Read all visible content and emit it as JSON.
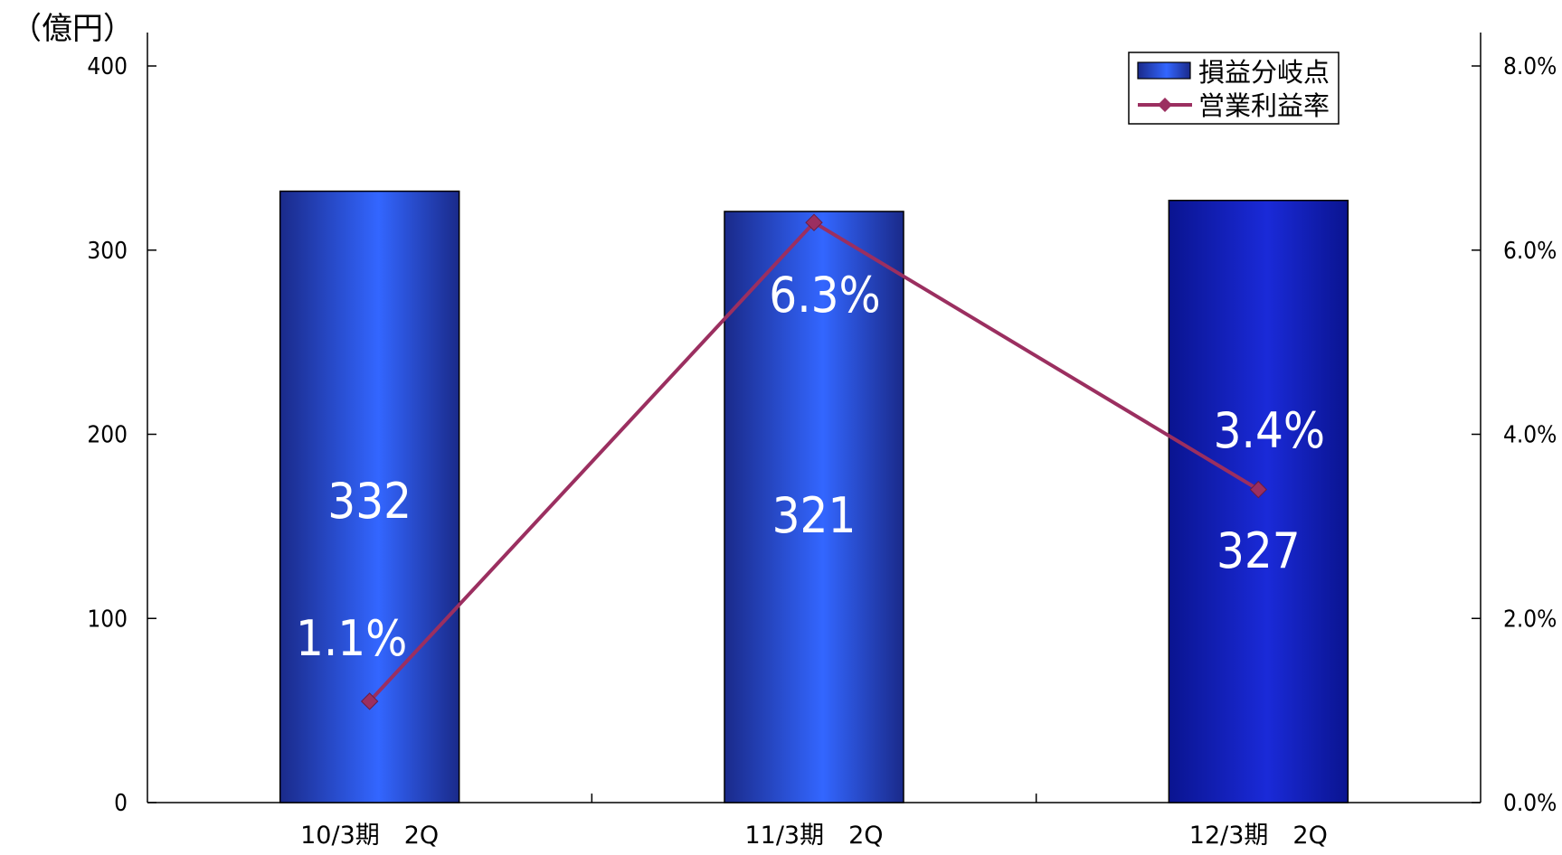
{
  "chart_data": {
    "type": "bar",
    "categories": [
      "10/3期　2Q",
      "11/3期　2Q",
      "12/3期　2Q"
    ],
    "series": [
      {
        "name": "損益分岐点",
        "type": "bar",
        "axis": "left",
        "values": [
          332,
          321,
          327
        ],
        "labels": [
          "332",
          "321",
          "327"
        ],
        "colors": [
          "#2f62ff",
          "#2f62ff",
          "#1420c8"
        ]
      },
      {
        "name": "営業利益率",
        "type": "line",
        "axis": "right",
        "values": [
          1.1,
          6.3,
          3.4
        ],
        "labels": [
          "1.1%",
          "6.3%",
          "3.4%"
        ],
        "color": "#9b2f60"
      }
    ],
    "y_left": {
      "unit": "（億円）",
      "ylim": [
        0,
        400
      ],
      "ticks": [
        0,
        100,
        200,
        300,
        400
      ],
      "tick_labels": [
        "0",
        "100",
        "200",
        "300",
        "400"
      ]
    },
    "y_right": {
      "ylim": [
        0,
        8
      ],
      "ticks": [
        0,
        2,
        4,
        6,
        8
      ],
      "tick_labels": [
        "0.0%",
        "2.0%",
        "4.0%",
        "6.0%",
        "8.0%"
      ]
    },
    "legend": {
      "position": "top-right",
      "entries": [
        "損益分岐点",
        "営業利益率"
      ]
    },
    "grid": false
  }
}
